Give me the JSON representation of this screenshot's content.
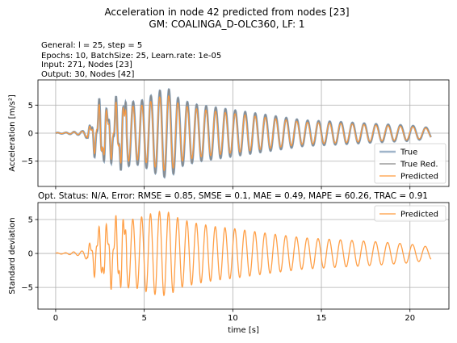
{
  "title_line1": "Acceleration in node 42 predicted from nodes [23]",
  "title_line2": "GM: COALINGA_D-OLC360, LF: 1",
  "info": [
    "General: l = 25, step = 5",
    "Epochs: 10, BatchSize: 25, Learn.rate: 1e-05",
    "Input: 271, Nodes [23]",
    "Output: 30, Nodes [42]"
  ],
  "metrics_line": "Opt. Status: N/A, Error: RMSE = 0.85, SMSE = 0.1, MAE = 0.49, MAPE = 60.26, TRAC = 0.91",
  "colors": {
    "true": "#7896b4",
    "true_reduced": "#888888",
    "predicted": "#ff9a3c",
    "grid": "#b0b0b0"
  },
  "chart_data": [
    {
      "type": "line",
      "xlabel": "",
      "ylabel": "Acceleration [m/s²]",
      "xlim": [
        -1.0,
        22.2
      ],
      "ylim": [
        -9.5,
        9.5
      ],
      "xticks": [
        0,
        5,
        10,
        15,
        20
      ],
      "yticks": [
        -5,
        0,
        5
      ],
      "ytick_labels": [
        "−5",
        "0",
        "5"
      ],
      "grid": true,
      "legend_position": "lower right",
      "series": [
        {
          "name": "True",
          "color": "#7896b4"
        },
        {
          "name": "True Red.",
          "color": "#888888"
        },
        {
          "name": "Predicted",
          "color": "#ff9a3c"
        }
      ],
      "envelope": {
        "t": [
          0.5,
          1.5,
          2.0,
          2.3,
          2.6,
          3.0,
          3.5,
          4.0,
          4.5,
          5.0,
          5.5,
          6.0,
          6.5,
          7.0,
          8.0,
          9.0,
          10.0,
          12.0,
          14.0,
          16.0,
          18.0,
          20.0,
          21.2
        ],
        "amplitude": [
          0.1,
          0.4,
          1.5,
          4.5,
          5.5,
          4.0,
          5.5,
          6.5,
          6.0,
          6.5,
          7.5,
          8.5,
          8.5,
          6.5,
          5.5,
          5.0,
          4.5,
          3.5,
          2.5,
          2.2,
          1.8,
          1.5,
          1.0
        ]
      }
    },
    {
      "type": "line",
      "xlabel": "time [s]",
      "ylabel": "Standard deviation",
      "xlim": [
        -1.0,
        22.2
      ],
      "ylim": [
        -8.2,
        7.5
      ],
      "xticks": [
        0,
        5,
        10,
        15,
        20
      ],
      "xtick_labels": [
        "0",
        "5",
        "10",
        "15",
        "20"
      ],
      "yticks": [
        -5,
        0,
        5
      ],
      "ytick_labels": [
        "−5",
        "0",
        "5"
      ],
      "grid": true,
      "legend_position": "upper right",
      "series": [
        {
          "name": "Predicted",
          "color": "#ff9a3c"
        }
      ],
      "envelope": {
        "t": [
          0.5,
          1.5,
          2.0,
          2.3,
          2.6,
          3.0,
          3.5,
          4.0,
          4.5,
          5.0,
          5.5,
          6.0,
          6.5,
          7.0,
          8.0,
          9.0,
          10.0,
          12.0,
          14.0,
          16.0,
          18.0,
          20.0,
          21.2
        ],
        "amplitude": [
          0.1,
          0.4,
          1.5,
          3.5,
          3.5,
          4.0,
          4.8,
          5.5,
          5.5,
          6.0,
          6.5,
          6.8,
          6.5,
          5.5,
          4.8,
          4.3,
          4.0,
          3.2,
          2.5,
          2.2,
          1.9,
          1.5,
          1.0
        ]
      }
    }
  ]
}
